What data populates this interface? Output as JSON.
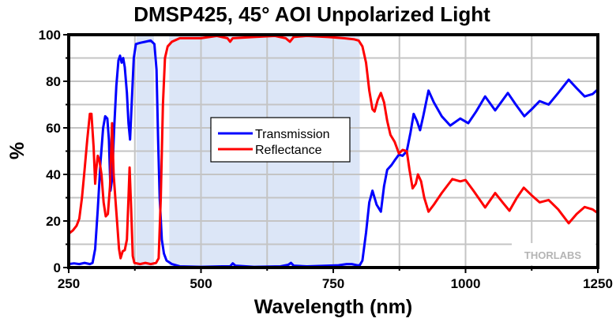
{
  "chart_data": {
    "type": "line",
    "title": "DMSP425, 45° AOI Unpolarized Light",
    "xlabel": "Wavelength (nm)",
    "ylabel": "%",
    "xlim": [
      250,
      1250
    ],
    "ylim": [
      0,
      100
    ],
    "x_ticks": [
      250,
      500,
      750,
      1000,
      1250
    ],
    "x_tick_labels": [
      "250",
      "500",
      "750",
      "1000",
      "1250"
    ],
    "x_minor_ticks": [
      375,
      625,
      875,
      1125
    ],
    "y_ticks": [
      0,
      20,
      40,
      60,
      80,
      100
    ],
    "y_tick_labels": [
      "0",
      "20",
      "40",
      "60",
      "80",
      "100"
    ],
    "y_minor_ticks": [
      10,
      30,
      50,
      70,
      90
    ],
    "grid": true,
    "legend_position": "center",
    "watermark": "THORLABS",
    "shaded_regions": [
      {
        "x_start": 378,
        "x_end": 411,
        "color": "#dce6f7"
      },
      {
        "x_start": 440,
        "x_end": 800,
        "color": "#dce6f7"
      }
    ],
    "series": [
      {
        "name": "Transmission",
        "color": "#0000ff",
        "points": [
          [
            250,
            1.5
          ],
          [
            260,
            1.8
          ],
          [
            270,
            1.5
          ],
          [
            280,
            2.0
          ],
          [
            290,
            1.5
          ],
          [
            295,
            2.0
          ],
          [
            300,
            8
          ],
          [
            305,
            25
          ],
          [
            310,
            45
          ],
          [
            315,
            60
          ],
          [
            319,
            65
          ],
          [
            323,
            64
          ],
          [
            326,
            55
          ],
          [
            329,
            33
          ],
          [
            332,
            38
          ],
          [
            336,
            60
          ],
          [
            340,
            78
          ],
          [
            344,
            89
          ],
          [
            347,
            91
          ],
          [
            350,
            88
          ],
          [
            353,
            90
          ],
          [
            356,
            86
          ],
          [
            360,
            75
          ],
          [
            363,
            62
          ],
          [
            366,
            55
          ],
          [
            369,
            70
          ],
          [
            373,
            90
          ],
          [
            377,
            96
          ],
          [
            385,
            96.5
          ],
          [
            395,
            97
          ],
          [
            405,
            97.5
          ],
          [
            412,
            96
          ],
          [
            416,
            85
          ],
          [
            419,
            55
          ],
          [
            422,
            30
          ],
          [
            426,
            12
          ],
          [
            430,
            6
          ],
          [
            435,
            3
          ],
          [
            445,
            1.5
          ],
          [
            460,
            0.5
          ],
          [
            500,
            0.3
          ],
          [
            540,
            0.5
          ],
          [
            555,
            0.5
          ],
          [
            560,
            1.8
          ],
          [
            565,
            0.8
          ],
          [
            600,
            0.3
          ],
          [
            650,
            0.5
          ],
          [
            665,
            1.2
          ],
          [
            670,
            2.0
          ],
          [
            675,
            0.8
          ],
          [
            700,
            0.5
          ],
          [
            740,
            0.8
          ],
          [
            760,
            1.0
          ],
          [
            775,
            1.5
          ],
          [
            785,
            1.5
          ],
          [
            795,
            1.0
          ],
          [
            800,
            1.0
          ],
          [
            805,
            3
          ],
          [
            812,
            15
          ],
          [
            818,
            28
          ],
          [
            824,
            33
          ],
          [
            832,
            27
          ],
          [
            840,
            24
          ],
          [
            846,
            35
          ],
          [
            852,
            42
          ],
          [
            860,
            44
          ],
          [
            866,
            46
          ],
          [
            874,
            48.5
          ],
          [
            881,
            48
          ],
          [
            889,
            50
          ],
          [
            896,
            58
          ],
          [
            902,
            66
          ],
          [
            908,
            63
          ],
          [
            914,
            59
          ],
          [
            920,
            65
          ],
          [
            930,
            76
          ],
          [
            940,
            71
          ],
          [
            955,
            65
          ],
          [
            971,
            61
          ],
          [
            990,
            64
          ],
          [
            1005,
            62
          ],
          [
            1020,
            67
          ],
          [
            1037,
            73.5
          ],
          [
            1056,
            67.5
          ],
          [
            1080,
            75
          ],
          [
            1095,
            70
          ],
          [
            1111,
            65
          ],
          [
            1125,
            68
          ],
          [
            1140,
            71.5
          ],
          [
            1157,
            70
          ],
          [
            1175,
            75
          ],
          [
            1195,
            80.7
          ],
          [
            1210,
            77
          ],
          [
            1225,
            73.5
          ],
          [
            1240,
            74.5
          ],
          [
            1250,
            76.5
          ]
        ]
      },
      {
        "name": "Reflectance",
        "color": "#ff0000",
        "points": [
          [
            250,
            14.5
          ],
          [
            258,
            16
          ],
          [
            265,
            18
          ],
          [
            270,
            21
          ],
          [
            275,
            30
          ],
          [
            280,
            42
          ],
          [
            285,
            55
          ],
          [
            290,
            66
          ],
          [
            293,
            66
          ],
          [
            297,
            52
          ],
          [
            300,
            36
          ],
          [
            302,
            42
          ],
          [
            305,
            48
          ],
          [
            308,
            46
          ],
          [
            312,
            40
          ],
          [
            316,
            28
          ],
          [
            320,
            22
          ],
          [
            324,
            23
          ],
          [
            328,
            35
          ],
          [
            332,
            62
          ],
          [
            335,
            40
          ],
          [
            338,
            30
          ],
          [
            342,
            18
          ],
          [
            345,
            8
          ],
          [
            348,
            4
          ],
          [
            352,
            7
          ],
          [
            356,
            7.5
          ],
          [
            360,
            12
          ],
          [
            363,
            30
          ],
          [
            365,
            43
          ],
          [
            368,
            25
          ],
          [
            371,
            5
          ],
          [
            374,
            2
          ],
          [
            385,
            1.5
          ],
          [
            395,
            2
          ],
          [
            405,
            1.5
          ],
          [
            415,
            2
          ],
          [
            420,
            4
          ],
          [
            424,
            30
          ],
          [
            428,
            70
          ],
          [
            432,
            90
          ],
          [
            437,
            95
          ],
          [
            445,
            97
          ],
          [
            460,
            98.5
          ],
          [
            500,
            98.5
          ],
          [
            530,
            99.5
          ],
          [
            550,
            98.5
          ],
          [
            555,
            97
          ],
          [
            560,
            98.5
          ],
          [
            600,
            99
          ],
          [
            640,
            99.5
          ],
          [
            660,
            98.5
          ],
          [
            668,
            97
          ],
          [
            675,
            99
          ],
          [
            700,
            99.5
          ],
          [
            740,
            99
          ],
          [
            770,
            98.5
          ],
          [
            790,
            98
          ],
          [
            798,
            97.5
          ],
          [
            805,
            95
          ],
          [
            812,
            88
          ],
          [
            818,
            76
          ],
          [
            824,
            68
          ],
          [
            828,
            67
          ],
          [
            834,
            72
          ],
          [
            840,
            75
          ],
          [
            846,
            71
          ],
          [
            852,
            63
          ],
          [
            858,
            57
          ],
          [
            866,
            54
          ],
          [
            874,
            49
          ],
          [
            881,
            50.5
          ],
          [
            889,
            50
          ],
          [
            894,
            42
          ],
          [
            900,
            34
          ],
          [
            906,
            36
          ],
          [
            910,
            40
          ],
          [
            916,
            37
          ],
          [
            922,
            30
          ],
          [
            930,
            24
          ],
          [
            940,
            27
          ],
          [
            955,
            32
          ],
          [
            975,
            38
          ],
          [
            990,
            37
          ],
          [
            1000,
            37.6
          ],
          [
            1015,
            33
          ],
          [
            1037,
            25.8
          ],
          [
            1056,
            32
          ],
          [
            1070,
            28
          ],
          [
            1083,
            24.4
          ],
          [
            1097,
            30
          ],
          [
            1110,
            34.3
          ],
          [
            1125,
            31
          ],
          [
            1140,
            28
          ],
          [
            1157,
            29
          ],
          [
            1175,
            25
          ],
          [
            1195,
            19
          ],
          [
            1210,
            23
          ],
          [
            1225,
            26
          ],
          [
            1240,
            25
          ],
          [
            1250,
            23.4
          ]
        ]
      }
    ]
  }
}
